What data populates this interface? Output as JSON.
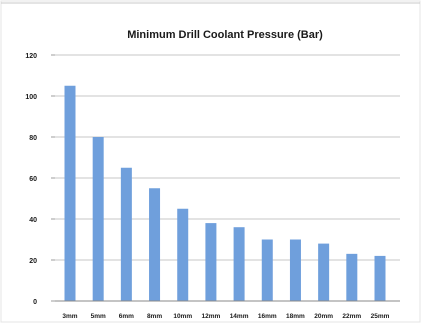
{
  "chart_data": {
    "type": "bar",
    "title": "Minimum Drill Coolant Pressure (Bar)",
    "xlabel": "",
    "ylabel": "",
    "categories": [
      "3mm",
      "5mm",
      "6mm",
      "8mm",
      "10mm",
      "12mm",
      "14mm",
      "16mm",
      "18mm",
      "20mm",
      "22mm",
      "25mm"
    ],
    "values": [
      105,
      80,
      65,
      55,
      45,
      38,
      36,
      30,
      30,
      28,
      23,
      22
    ],
    "ylim": [
      0,
      120
    ],
    "yticks": [
      "0",
      "20",
      "40",
      "60",
      "80",
      "100",
      "120"
    ],
    "grid": true,
    "legend": "none",
    "colors": {
      "bar": "#6f9fdc",
      "grid": "#b5b5b5",
      "frame": "#9c9c9c",
      "text": "#1a1a1a"
    }
  }
}
